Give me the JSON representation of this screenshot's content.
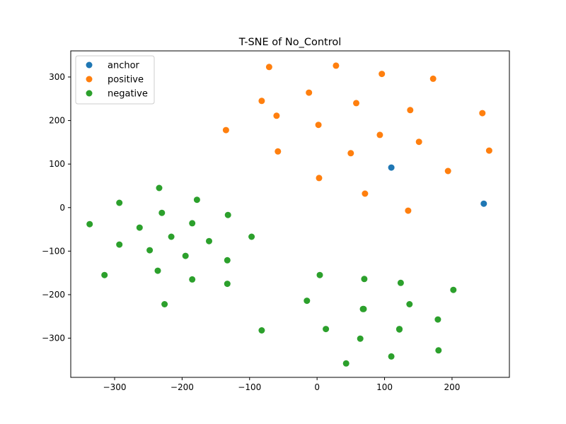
{
  "chart_data": {
    "type": "scatter",
    "title": "T-SNE of No_Control",
    "xlabel": "",
    "ylabel": "",
    "xlim": [
      -365,
      285
    ],
    "ylim": [
      -390,
      360
    ],
    "xticks": [
      -300,
      -200,
      -100,
      0,
      100,
      200
    ],
    "yticks": [
      -300,
      -200,
      -100,
      0,
      100,
      200,
      300
    ],
    "grid": false,
    "legend_position": "top-left",
    "series": [
      {
        "name": "anchor",
        "color": "#1f77b4",
        "points": [
          [
            110,
            92
          ],
          [
            247,
            9
          ]
        ]
      },
      {
        "name": "positive",
        "color": "#ff7f0e",
        "points": [
          [
            -71,
            323
          ],
          [
            28,
            326
          ],
          [
            96,
            307
          ],
          [
            172,
            296
          ],
          [
            -82,
            245
          ],
          [
            -12,
            264
          ],
          [
            58,
            240
          ],
          [
            138,
            224
          ],
          [
            245,
            217
          ],
          [
            -60,
            211
          ],
          [
            2,
            190
          ],
          [
            93,
            167
          ],
          [
            151,
            151
          ],
          [
            -135,
            178
          ],
          [
            -58,
            129
          ],
          [
            50,
            125
          ],
          [
            255,
            131
          ],
          [
            3,
            68
          ],
          [
            194,
            84
          ],
          [
            71,
            32
          ],
          [
            135,
            -7
          ]
        ]
      },
      {
        "name": "negative",
        "color": "#2ca02c",
        "points": [
          [
            -234,
            45
          ],
          [
            -178,
            18
          ],
          [
            -293,
            11
          ],
          [
            -230,
            -12
          ],
          [
            -132,
            -17
          ],
          [
            -337,
            -38
          ],
          [
            -185,
            -36
          ],
          [
            -263,
            -46
          ],
          [
            -216,
            -67
          ],
          [
            -97,
            -67
          ],
          [
            -160,
            -77
          ],
          [
            -293,
            -85
          ],
          [
            -248,
            -98
          ],
          [
            -195,
            -111
          ],
          [
            -133,
            -121
          ],
          [
            -236,
            -145
          ],
          [
            -315,
            -155
          ],
          [
            -185,
            -165
          ],
          [
            -133,
            -175
          ],
          [
            -226,
            -222
          ],
          [
            -82,
            -282
          ],
          [
            4,
            -155
          ],
          [
            70,
            -164
          ],
          [
            124,
            -173
          ],
          [
            202,
            -189
          ],
          [
            -15,
            -214
          ],
          [
            68,
            -233
          ],
          [
            137,
            -222
          ],
          [
            179,
            -257
          ],
          [
            13,
            -279
          ],
          [
            64,
            -301
          ],
          [
            122,
            -280
          ],
          [
            180,
            -328
          ],
          [
            110,
            -342
          ],
          [
            43,
            -358
          ],
          [
            69,
            -233
          ],
          [
            122,
            -279
          ]
        ]
      }
    ]
  }
}
